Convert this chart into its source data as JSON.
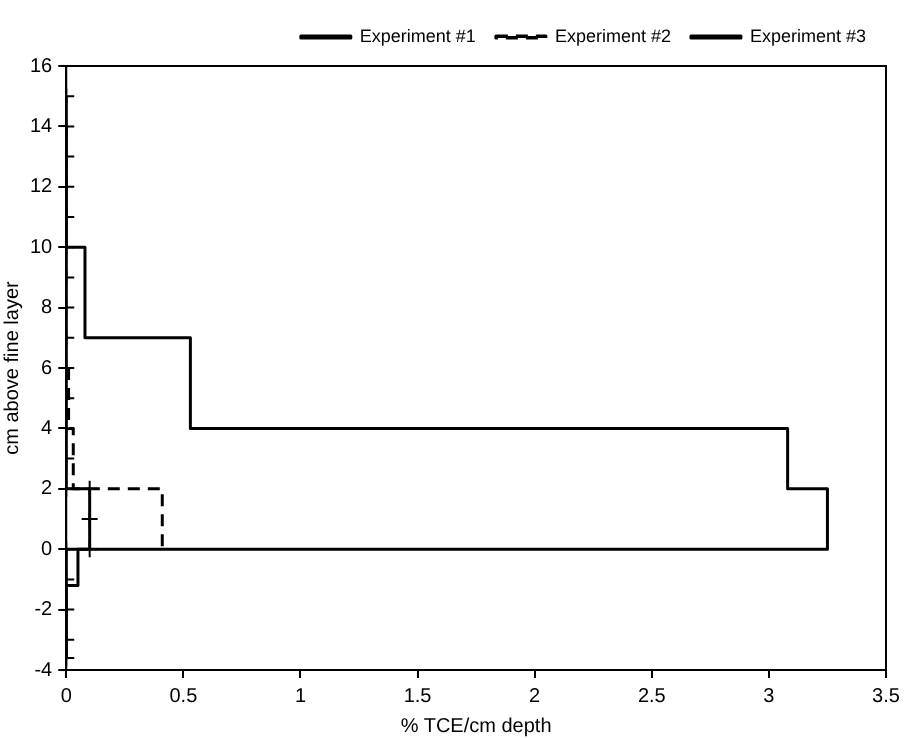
{
  "chart_data": {
    "type": "line",
    "xlabel": "% TCE/cm depth",
    "ylabel": "cm above fine layer",
    "xlim": [
      0,
      3.5
    ],
    "xticks": [
      0,
      0.5,
      1,
      1.5,
      2,
      2.5,
      3,
      3.5
    ],
    "ylim": [
      -4,
      16
    ],
    "yticks": [
      -4,
      -2,
      0,
      2,
      4,
      6,
      8,
      10,
      12,
      14,
      16
    ],
    "grid": false,
    "legend": "top right",
    "series": [
      {
        "name": "Experiment #1",
        "color": "#000000",
        "line_style": "solid",
        "marker": "none",
        "x": [
          0,
          0,
          0.08,
          0.08,
          0.53,
          0.53,
          3.08,
          3.08,
          3.25,
          3.25,
          0.05,
          0.05,
          0,
          0
        ],
        "values": [
          14,
          10,
          10,
          7,
          7,
          4,
          4,
          2,
          2,
          0,
          0,
          -1.2,
          -1.2,
          -3.6
        ]
      },
      {
        "name": "Experiment #2",
        "color": "#000000",
        "line_style": "dashed",
        "marker": "none",
        "x": [
          0.01,
          0.01,
          0.03,
          0.03,
          0.41,
          0.41
        ],
        "values": [
          6,
          4,
          4,
          2,
          2,
          0
        ]
      },
      {
        "name": "Experiment #3",
        "color": "#000000",
        "line_style": "solid",
        "marker": "cross",
        "x": [
          0,
          0,
          0,
          0,
          0,
          0,
          0,
          0,
          0,
          0,
          0,
          0,
          0,
          0,
          0.1,
          0.1,
          0.1,
          0,
          0,
          0,
          0,
          0
        ],
        "values": [
          15,
          14,
          13,
          12,
          11,
          10,
          9,
          8,
          7,
          6,
          5,
          4,
          3,
          2,
          2,
          1,
          0,
          0,
          -1,
          -2,
          -3,
          -3.6
        ]
      }
    ]
  }
}
